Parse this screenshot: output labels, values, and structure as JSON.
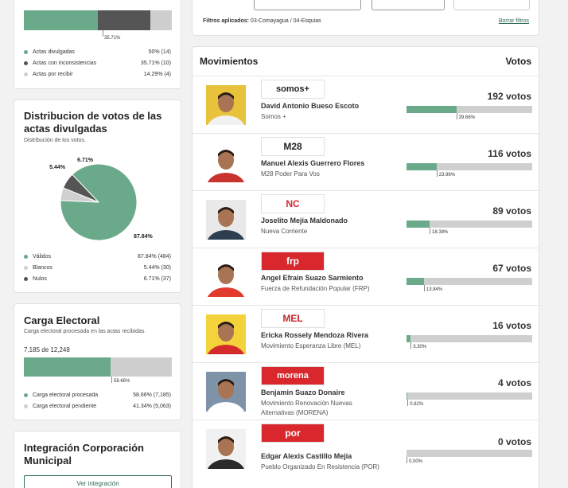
{
  "actas": {
    "top_pct": "35.71%",
    "legend": [
      {
        "label": "Actas divulgadas",
        "value": "50% (14)",
        "color": "#6aaa8a"
      },
      {
        "label": "Actas con inconsistencias",
        "value": "35.71% (10)",
        "color": "#555555"
      },
      {
        "label": "Actas por recibir",
        "value": "14.29% (4)",
        "color": "#cfcfcf"
      }
    ],
    "distribution": [
      50,
      35.71,
      14.29
    ]
  },
  "distribucion": {
    "title": "Distribucion de votos de las actas divulgadas",
    "subtitle": "Distribución de los votos.",
    "chart_data": {
      "type": "pie",
      "categories": [
        "Válidos",
        "Blancos",
        "Nulos"
      ],
      "values": [
        87.84,
        5.44,
        6.71
      ],
      "colors": [
        "#6aaa8a",
        "#cfcfcf",
        "#555555"
      ]
    },
    "pie_labels": [
      "87.84%",
      "5.44%",
      "6.71%"
    ],
    "legend": [
      {
        "label": "Válidos",
        "value": "87.84% (484)",
        "color": "#6aaa8a"
      },
      {
        "label": "Blancos",
        "value": "5.44% (30)",
        "color": "#cfcfcf"
      },
      {
        "label": "Nulos",
        "value": "6.71% (37)",
        "color": "#555555"
      }
    ]
  },
  "carga": {
    "title": "Carga Electoral",
    "subtitle": "Carga electoral procesada en las actas recibidas.",
    "count": "7,185 de 12,248",
    "progress": 58.66,
    "pct_label": "58.66%",
    "legend": [
      {
        "label": "Carga electoral procesada",
        "value": "58.66% (7,185)",
        "color": "#6aaa8a"
      },
      {
        "label": "Carga electoral pendiente",
        "value": "41.34% (5,063)",
        "color": "#cfcfcf"
      }
    ]
  },
  "integracion": {
    "title": "Integración Corporación Municipal",
    "button": "Ver integración"
  },
  "filters": {
    "label": "Filtros aplicados:",
    "value": "03-Comayagua / 04-Esquias",
    "clear": "Borrar filtros"
  },
  "movimientos": {
    "title": "Movimientos",
    "votes_header": "Votos",
    "candidates": [
      {
        "name": "David Antonio Bueso Escoto",
        "party": "Somos +",
        "votes": "192 votos",
        "pct": 39.66,
        "pct_label": "39.66%",
        "logo": "somos+",
        "logo_color": "#222222",
        "logo_bg": "#ffffff",
        "shirt": "#f1f1f1",
        "bg": "#e8c23a"
      },
      {
        "name": "Manuel Alexis Guerrero Flores",
        "party": "M28 Poder Para Vos",
        "votes": "116 votos",
        "pct": 23.96,
        "pct_label": "23.96%",
        "logo": "M28",
        "logo_color": "#222222",
        "logo_bg": "#ffffff",
        "shirt": "#c8332e",
        "bg": "#ffffff"
      },
      {
        "name": "Joselito Mejia Maldonado",
        "party": "Nueva Corriente",
        "votes": "89 votos",
        "pct": 18.38,
        "pct_label": "18.38%",
        "logo": "NC",
        "logo_color": "#d8282d",
        "logo_bg": "#ffffff",
        "shirt": "#2c3e50",
        "bg": "#e9e9e9"
      },
      {
        "name": "Angel Efrain Suazo Sarmiento",
        "party": "Fuerza de Refundación Popular (FRP)",
        "votes": "67 votos",
        "pct": 13.84,
        "pct_label": "13.84%",
        "logo": "frp",
        "logo_color": "#ffffff",
        "logo_bg": "#d8282d",
        "shirt": "#e23b2e",
        "bg": "#ffffff"
      },
      {
        "name": "Ericka Rossely Mendoza Rivera",
        "party": "Movimiento Esperanza Libre (MEL)",
        "votes": "16 votos",
        "pct": 3.3,
        "pct_label": "3.30%",
        "logo": "MEL",
        "logo_color": "#c0282d",
        "logo_bg": "#ffffff",
        "shirt": "#d42c2c",
        "bg": "#f4d23c"
      },
      {
        "name": "Benjamin Suazo Donaire",
        "party": "Movimiento Renovación Nuevas Alternativas (MORENA)",
        "votes": "4 votos",
        "pct": 0.82,
        "pct_label": "0.82%",
        "logo": "morena",
        "logo_color": "#ffffff",
        "logo_bg": "#d8282d",
        "shirt": "#ffffff",
        "bg": "#7f93a8"
      },
      {
        "name": "Edgar Alexis Castillo Mejia",
        "party": "Pueblo Organizado En Resistencia (POR)",
        "votes": "0 votos",
        "pct": 0,
        "pct_label": "0.00%",
        "logo": "por",
        "logo_color": "#ffffff",
        "logo_bg": "#d8282d",
        "shirt": "#2b2b2b",
        "bg": "#f1f1f1"
      }
    ]
  }
}
